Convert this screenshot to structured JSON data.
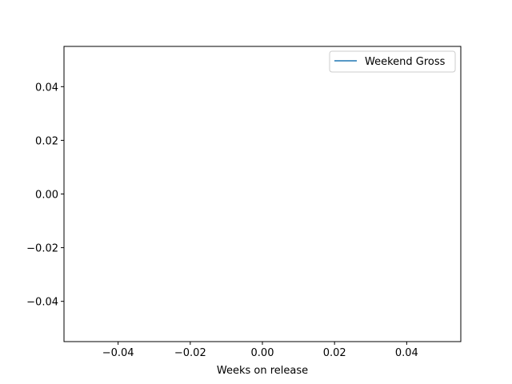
{
  "chart_data": {
    "type": "line",
    "xlabel": "Weeks on release",
    "ylabel": "",
    "xlim": [
      -0.055,
      0.055
    ],
    "ylim": [
      -0.055,
      0.055
    ],
    "x_ticks": [
      -0.04,
      -0.02,
      0.0,
      0.02,
      0.04
    ],
    "x_tick_labels": [
      "−0.04",
      "−0.02",
      "0.00",
      "0.02",
      "0.04"
    ],
    "y_ticks": [
      -0.04,
      -0.02,
      0.0,
      0.02,
      0.04
    ],
    "y_tick_labels": [
      "−0.04",
      "−0.02",
      "0.00",
      "0.02",
      "0.04"
    ],
    "grid": false,
    "legend_position": "top-right",
    "series": [
      {
        "name": "Weekend Gross",
        "color": "#1f77b4",
        "x": [],
        "y": []
      }
    ]
  }
}
